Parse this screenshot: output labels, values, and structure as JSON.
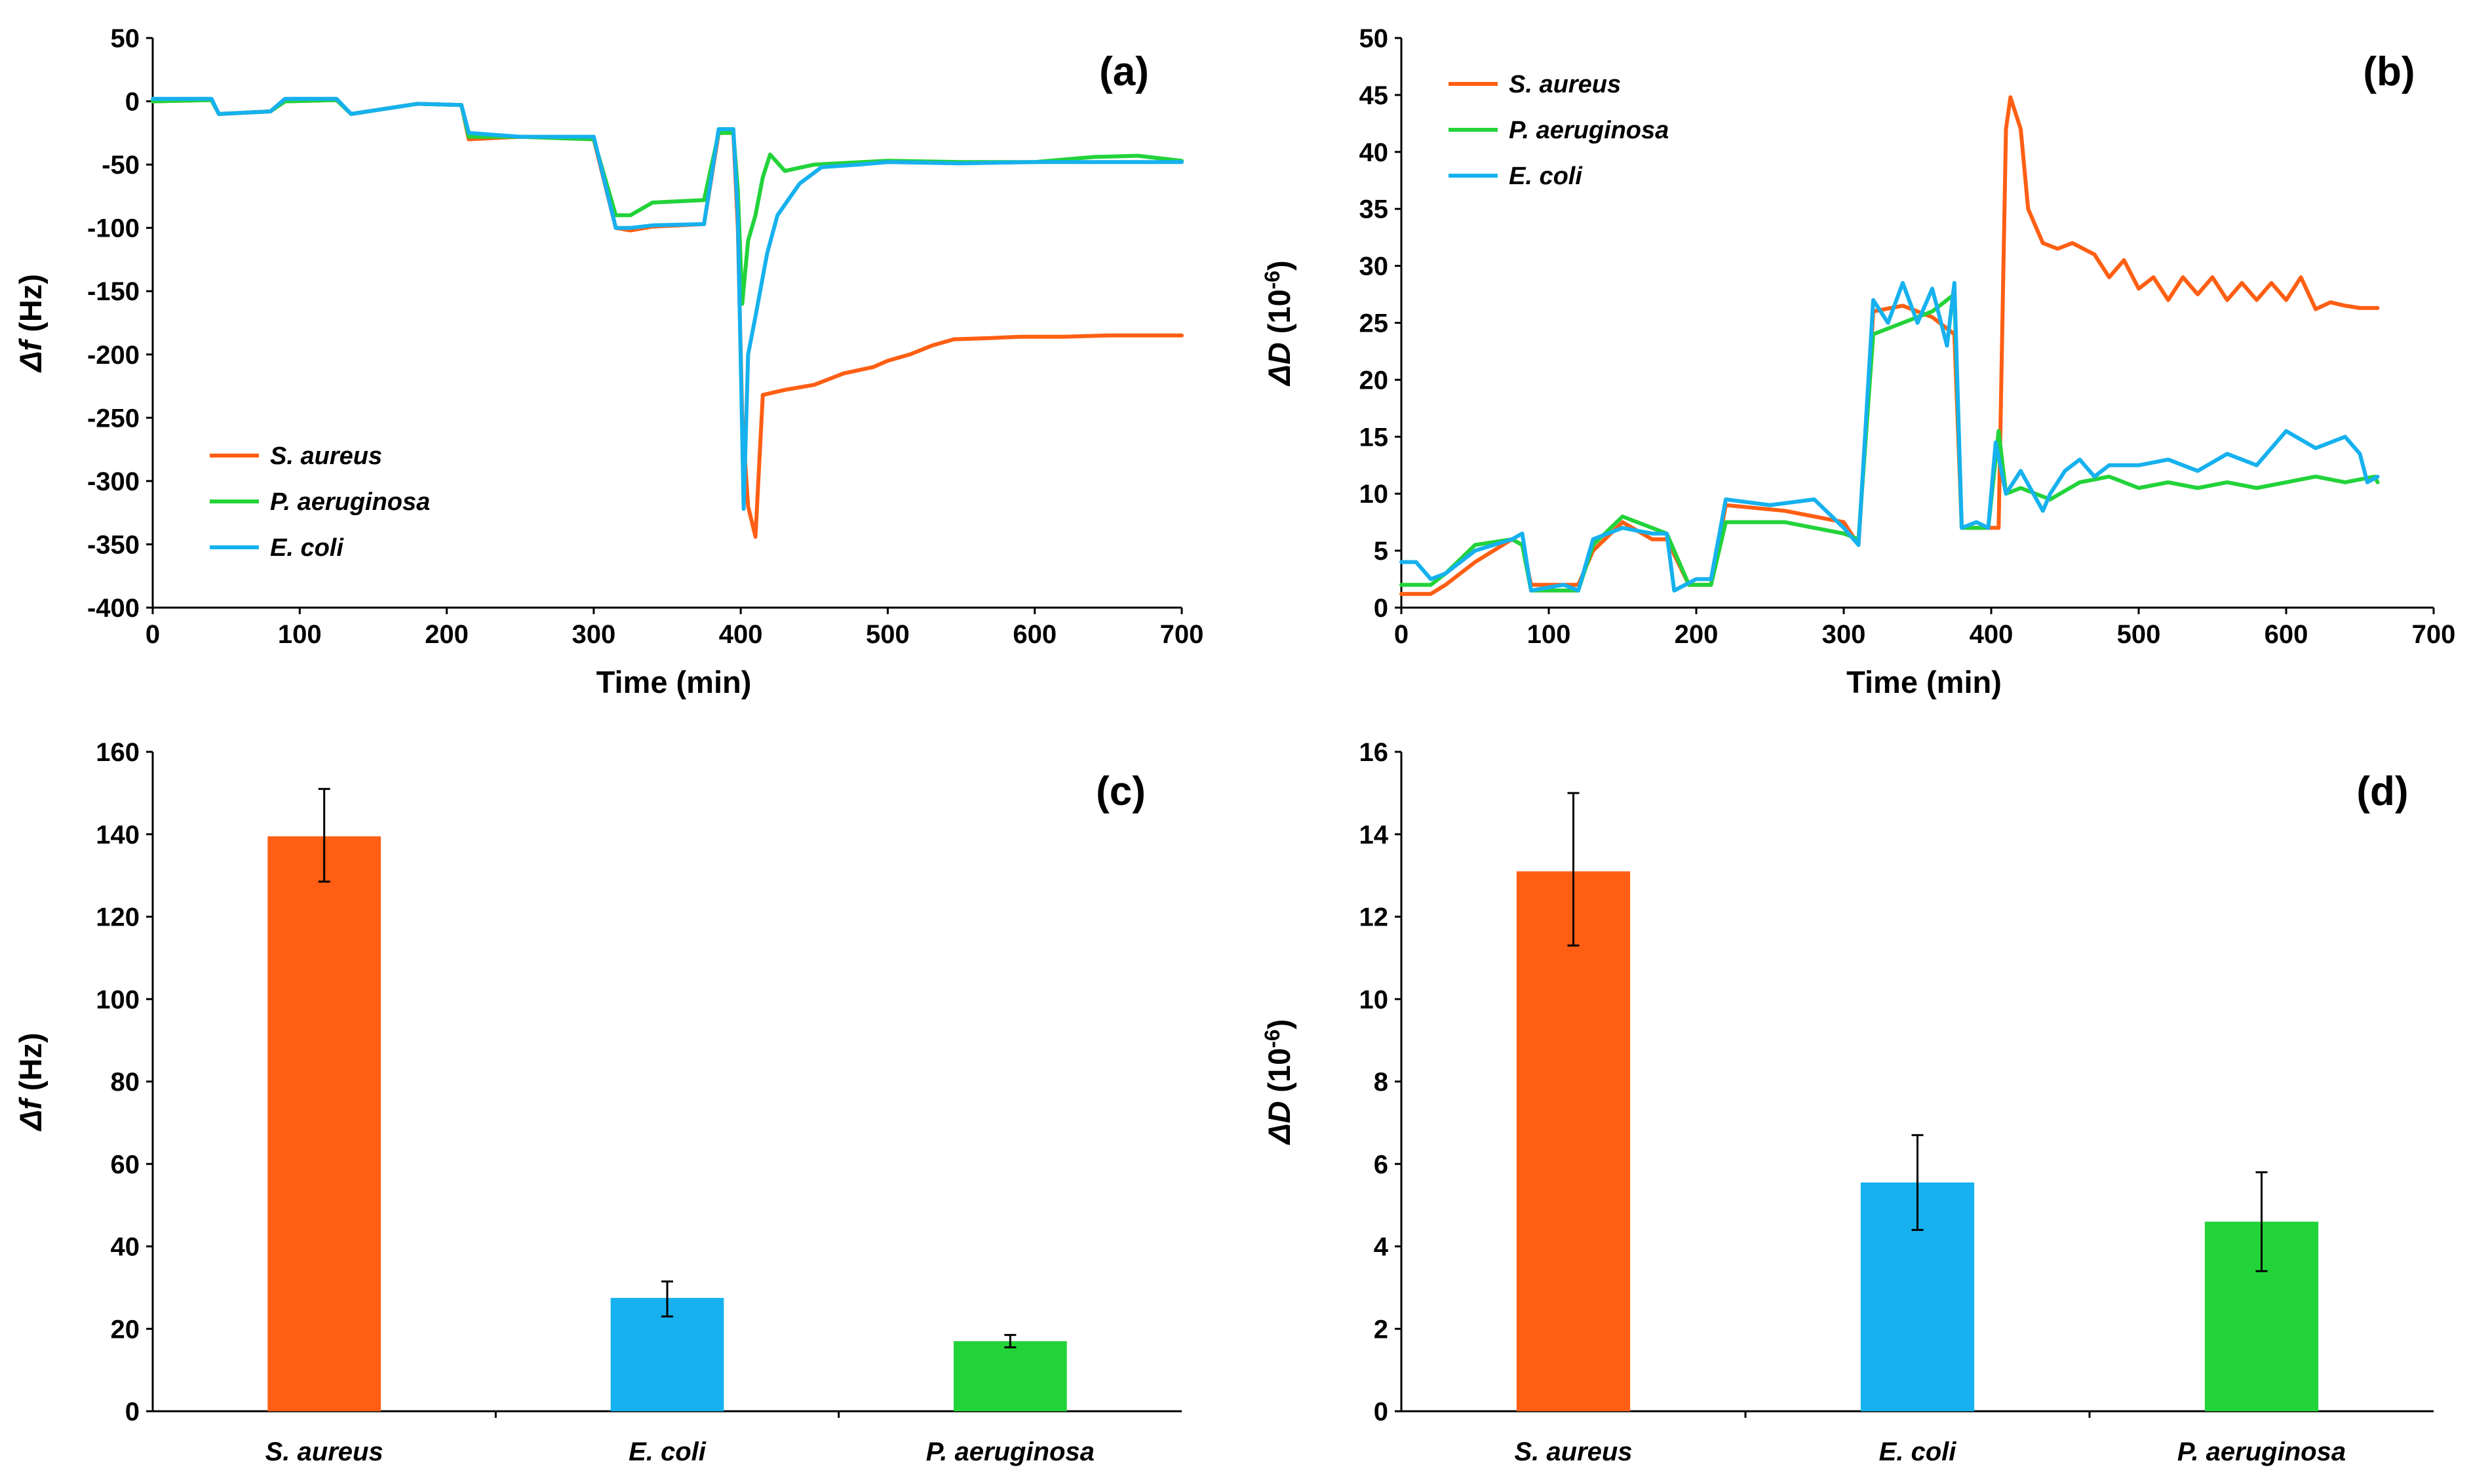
{
  "colors": {
    "s_aureus": "#FF5F14",
    "p_aeruginosa": "#22D33A",
    "e_coli": "#16B1EE",
    "axis": "#000000",
    "grid": "#D9D9D9"
  },
  "chart_data": [
    {
      "id": "a",
      "type": "line",
      "panel_label": "(a)",
      "xlabel": "Time (min)",
      "ylabel_symbol": "Δf",
      "ylabel_unit": " (Hz)",
      "xlim": [
        0,
        700
      ],
      "ylim": [
        -400,
        50
      ],
      "xticks": [
        0,
        100,
        200,
        300,
        400,
        500,
        600,
        700
      ],
      "yticks": [
        50,
        0,
        -50,
        -100,
        -150,
        -200,
        -250,
        -300,
        -350,
        -400
      ],
      "legend_position": "bottom-left",
      "series": [
        {
          "name": "S. aureus",
          "color_key": "s_aureus",
          "x": [
            0,
            40,
            45,
            80,
            90,
            125,
            135,
            180,
            210,
            215,
            250,
            300,
            315,
            325,
            340,
            375,
            385,
            395,
            398,
            401,
            405,
            410,
            415,
            430,
            450,
            470,
            490,
            500,
            515,
            530,
            545,
            570,
            590,
            620,
            650,
            680,
            700
          ],
          "y": [
            0,
            1,
            -10,
            -8,
            0,
            1,
            -10,
            -2,
            -3,
            -30,
            -28,
            -30,
            -100,
            -102,
            -99,
            -97,
            -25,
            -25,
            -100,
            -250,
            -320,
            -344,
            -232,
            -228,
            -224,
            -215,
            -210,
            -205,
            -200,
            -193,
            -188,
            -187,
            -186,
            -186,
            -185,
            -185,
            -185
          ]
        },
        {
          "name": "P. aeruginosa",
          "color_key": "p_aeruginosa",
          "x": [
            0,
            40,
            45,
            80,
            90,
            125,
            135,
            180,
            210,
            215,
            250,
            300,
            315,
            325,
            340,
            375,
            385,
            395,
            398,
            401,
            405,
            410,
            415,
            420,
            430,
            450,
            500,
            550,
            600,
            640,
            670,
            700
          ],
          "y": [
            0,
            1,
            -10,
            -8,
            0,
            1,
            -10,
            -2,
            -3,
            -28,
            -28,
            -30,
            -90,
            -90,
            -80,
            -78,
            -25,
            -25,
            -70,
            -160,
            -110,
            -90,
            -60,
            -42,
            -55,
            -50,
            -47,
            -48,
            -48,
            -44,
            -43,
            -47
          ]
        },
        {
          "name": "E. coli",
          "color_key": "e_coli",
          "x": [
            0,
            40,
            45,
            80,
            90,
            125,
            135,
            180,
            210,
            215,
            250,
            300,
            315,
            325,
            340,
            375,
            385,
            395,
            398,
            402,
            405,
            410,
            418,
            425,
            440,
            455,
            480,
            500,
            550,
            600,
            650,
            700
          ],
          "y": [
            2,
            2,
            -10,
            -8,
            2,
            2,
            -10,
            -2,
            -3,
            -25,
            -28,
            -28,
            -100,
            -100,
            -98,
            -97,
            -22,
            -22,
            -90,
            -322,
            -200,
            -170,
            -120,
            -90,
            -65,
            -52,
            -50,
            -48,
            -49,
            -48,
            -48,
            -48
          ]
        }
      ]
    },
    {
      "id": "b",
      "type": "line",
      "panel_label": "(b)",
      "xlabel": "Time (min)",
      "ylabel_symbol": "ΔD",
      "ylabel_unit": " (10",
      "ylabel_exp": "-6",
      "ylabel_close": ")",
      "xlim": [
        0,
        700
      ],
      "ylim": [
        0,
        50
      ],
      "xticks": [
        0,
        100,
        200,
        300,
        400,
        500,
        600,
        700
      ],
      "yticks": [
        0,
        5,
        10,
        15,
        20,
        25,
        30,
        35,
        40,
        45,
        50
      ],
      "legend_position": "top-left",
      "series": [
        {
          "name": "S. aureus",
          "color_key": "s_aureus",
          "x": [
            0,
            20,
            30,
            50,
            75,
            82,
            88,
            120,
            130,
            150,
            170,
            180,
            195,
            210,
            220,
            260,
            300,
            310,
            320,
            340,
            360,
            375,
            380,
            390,
            400,
            405,
            410,
            413,
            420,
            425,
            435,
            445,
            455,
            470,
            480,
            490,
            500,
            510,
            520,
            530,
            540,
            550,
            560,
            570,
            580,
            590,
            600,
            610,
            620,
            630,
            640,
            650,
            662
          ],
          "y": [
            1.2,
            1.2,
            2,
            4,
            6,
            5.5,
            2,
            2,
            5,
            7.5,
            6,
            6,
            2,
            2,
            9,
            8.5,
            7.5,
            5.5,
            26,
            26.5,
            25.5,
            24,
            7,
            7,
            7,
            7,
            42,
            44.8,
            42,
            35,
            32,
            31.5,
            32,
            31,
            29,
            30.5,
            28,
            29,
            27,
            29,
            27.5,
            29,
            27,
            28.5,
            27,
            28.5,
            27,
            29,
            26.2,
            26.8,
            26.5,
            26.3,
            26.3
          ]
        },
        {
          "name": "P. aeruginosa",
          "color_key": "p_aeruginosa",
          "x": [
            0,
            20,
            30,
            50,
            75,
            82,
            88,
            120,
            130,
            150,
            170,
            180,
            195,
            210,
            220,
            260,
            300,
            310,
            320,
            340,
            360,
            375,
            380,
            390,
            398,
            405,
            410,
            420,
            440,
            460,
            480,
            500,
            520,
            540,
            560,
            580,
            600,
            620,
            640,
            660,
            662
          ],
          "y": [
            2,
            2,
            3,
            5.5,
            6,
            5.5,
            1.5,
            1.5,
            5.5,
            8,
            7,
            6.5,
            2,
            2,
            7.5,
            7.5,
            6.5,
            6,
            24,
            25,
            26,
            27.5,
            7,
            7,
            7,
            15.5,
            10,
            10.5,
            9.5,
            11,
            11.5,
            10.5,
            11,
            10.5,
            11,
            10.5,
            11,
            11.5,
            11,
            11.5,
            11
          ]
        },
        {
          "name": "E. coli",
          "color_key": "e_coli",
          "x": [
            0,
            10,
            20,
            30,
            50,
            75,
            82,
            88,
            110,
            120,
            130,
            150,
            170,
            180,
            185,
            200,
            210,
            220,
            250,
            280,
            300,
            310,
            320,
            330,
            340,
            350,
            360,
            370,
            375,
            380,
            390,
            398,
            403,
            410,
            420,
            435,
            440,
            450,
            460,
            470,
            480,
            500,
            520,
            540,
            560,
            580,
            600,
            620,
            640,
            650,
            655,
            662
          ],
          "y": [
            4,
            4,
            2.5,
            3,
            5,
            6,
            6.5,
            1.5,
            2,
            1.5,
            6,
            7,
            6.5,
            6.5,
            1.5,
            2.5,
            2.5,
            9.5,
            9,
            9.5,
            7,
            5.5,
            27,
            25,
            28.5,
            25,
            28,
            23,
            28.5,
            7,
            7.5,
            7,
            14.5,
            10,
            12,
            8.5,
            10,
            12,
            13,
            11.5,
            12.5,
            12.5,
            13,
            12,
            13.5,
            12.5,
            15.5,
            14,
            15,
            13.5,
            11,
            11.5
          ]
        }
      ]
    },
    {
      "id": "c",
      "type": "bar",
      "panel_label": "(c)",
      "ylabel_symbol": "Δf",
      "ylabel_unit": " (Hz)",
      "ylim": [
        0,
        160
      ],
      "yticks": [
        0,
        20,
        40,
        60,
        80,
        100,
        120,
        140,
        160
      ],
      "categories": [
        "S. aureus",
        "E. coli",
        "P. aeruginosa"
      ],
      "color_keys": [
        "s_aureus",
        "e_coli",
        "p_aeruginosa"
      ],
      "values": [
        139.5,
        27.5,
        17
      ],
      "error_low": [
        128.5,
        23,
        15.5
      ],
      "error_high": [
        151,
        31.5,
        18.5
      ]
    },
    {
      "id": "d",
      "type": "bar",
      "panel_label": "(d)",
      "ylabel_symbol": "ΔD",
      "ylabel_unit": " (10",
      "ylabel_exp": "-6",
      "ylabel_close": ")",
      "ylim": [
        0,
        16
      ],
      "yticks": [
        0,
        2,
        4,
        6,
        8,
        10,
        12,
        14,
        16
      ],
      "categories": [
        "S. aureus",
        "E. coli",
        "P. aeruginosa"
      ],
      "color_keys": [
        "s_aureus",
        "e_coli",
        "p_aeruginosa"
      ],
      "values": [
        13.1,
        5.55,
        4.6
      ],
      "error_low": [
        11.3,
        4.4,
        3.4
      ],
      "error_high": [
        15,
        6.7,
        5.8
      ]
    }
  ]
}
